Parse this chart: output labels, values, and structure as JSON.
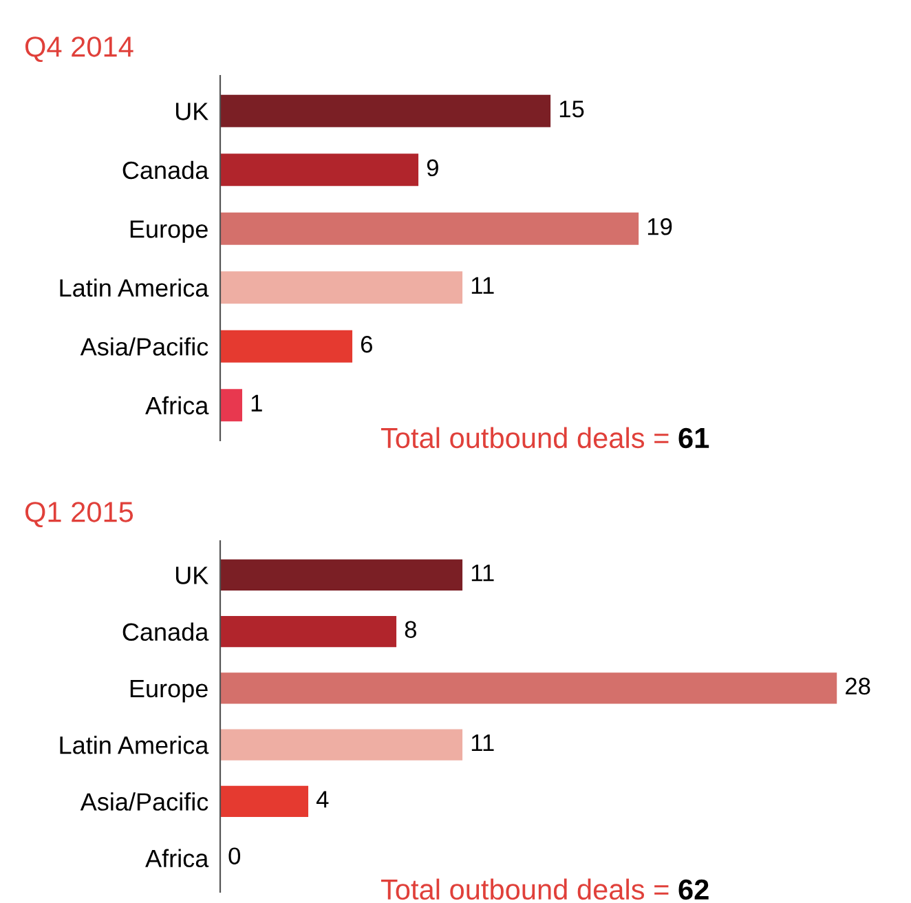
{
  "chart_data": [
    {
      "type": "bar",
      "title": "Q4 2014",
      "orientation": "horizontal",
      "data_labels": true,
      "categories": [
        "UK",
        "Canada",
        "Europe",
        "Latin America",
        "Asia/Pacific",
        "Africa"
      ],
      "values": [
        15,
        9,
        19,
        11,
        6,
        1
      ],
      "colors": [
        "#7b1f25",
        "#b1252c",
        "#d4706b",
        "#eeaea3",
        "#e53a30",
        "#e8384f"
      ],
      "annotations": [
        "Total outbound deals = 61"
      ]
    },
    {
      "type": "bar",
      "title": "Q1 2015",
      "orientation": "horizontal",
      "data_labels": true,
      "categories": [
        "UK",
        "Canada",
        "Europe",
        "Latin America",
        "Asia/Pacific",
        "Africa"
      ],
      "values": [
        11,
        8,
        28,
        11,
        4,
        0
      ],
      "colors": [
        "#7b1f25",
        "#b1252c",
        "#d4706b",
        "#eeaea3",
        "#e53a30",
        "#e8384f"
      ],
      "annotations": [
        "Total outbound deals = 62"
      ]
    }
  ]
}
